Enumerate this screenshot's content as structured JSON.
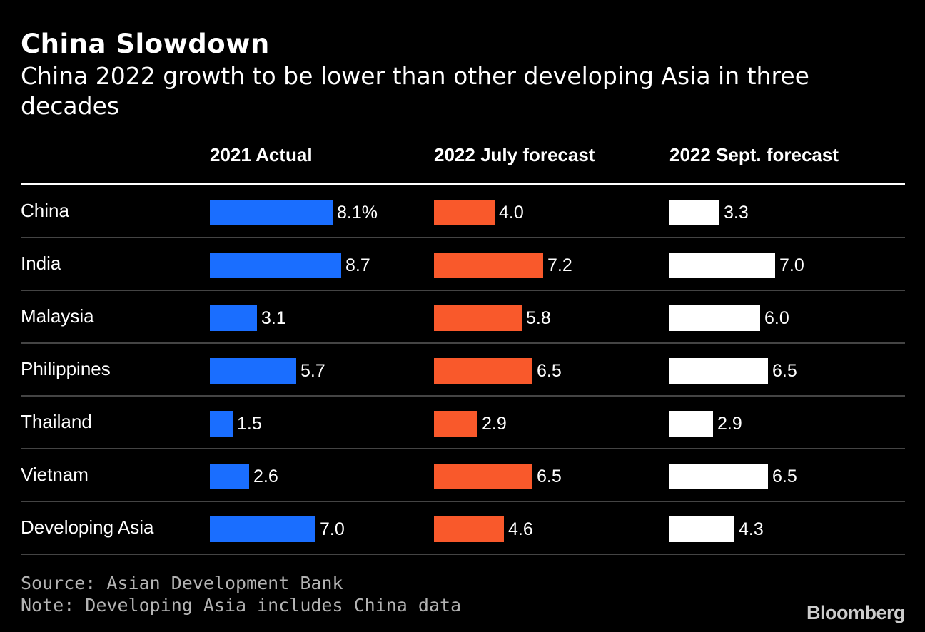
{
  "title": "China Slowdown",
  "subtitle": "China 2022 growth to be lower than other developing Asia in three decades",
  "source": "Source: Asian Development Bank",
  "note": "Note: Developing Asia includes China data",
  "logo": "Bloomberg",
  "colors": {
    "background": "#000000",
    "series_2021": "#1a6eff",
    "series_july": "#f9592b",
    "series_sept": "#ffffff"
  },
  "chart_data": {
    "type": "bar",
    "categories": [
      "China",
      "India",
      "Malaysia",
      "Philippines",
      "Thailand",
      "Vietnam",
      "Developing Asia"
    ],
    "series": [
      {
        "name": "2021 Actual",
        "values": [
          8.1,
          8.7,
          3.1,
          5.7,
          1.5,
          2.6,
          7.0
        ],
        "labels": [
          "8.1%",
          "8.7",
          "3.1",
          "5.7",
          "1.5",
          "2.6",
          "7.0"
        ]
      },
      {
        "name": "2022 July forecast",
        "values": [
          4.0,
          7.2,
          5.8,
          6.5,
          2.9,
          6.5,
          4.6
        ],
        "labels": [
          "4.0",
          "7.2",
          "5.8",
          "6.5",
          "2.9",
          "6.5",
          "4.6"
        ]
      },
      {
        "name": "2022 Sept. forecast",
        "values": [
          3.3,
          7.0,
          6.0,
          6.5,
          2.9,
          6.5,
          4.3
        ],
        "labels": [
          "3.3",
          "7.0",
          "6.0",
          "6.5",
          "2.9",
          "6.5",
          "4.3"
        ]
      }
    ],
    "orientation": "horizontal",
    "legend": "column headers"
  }
}
